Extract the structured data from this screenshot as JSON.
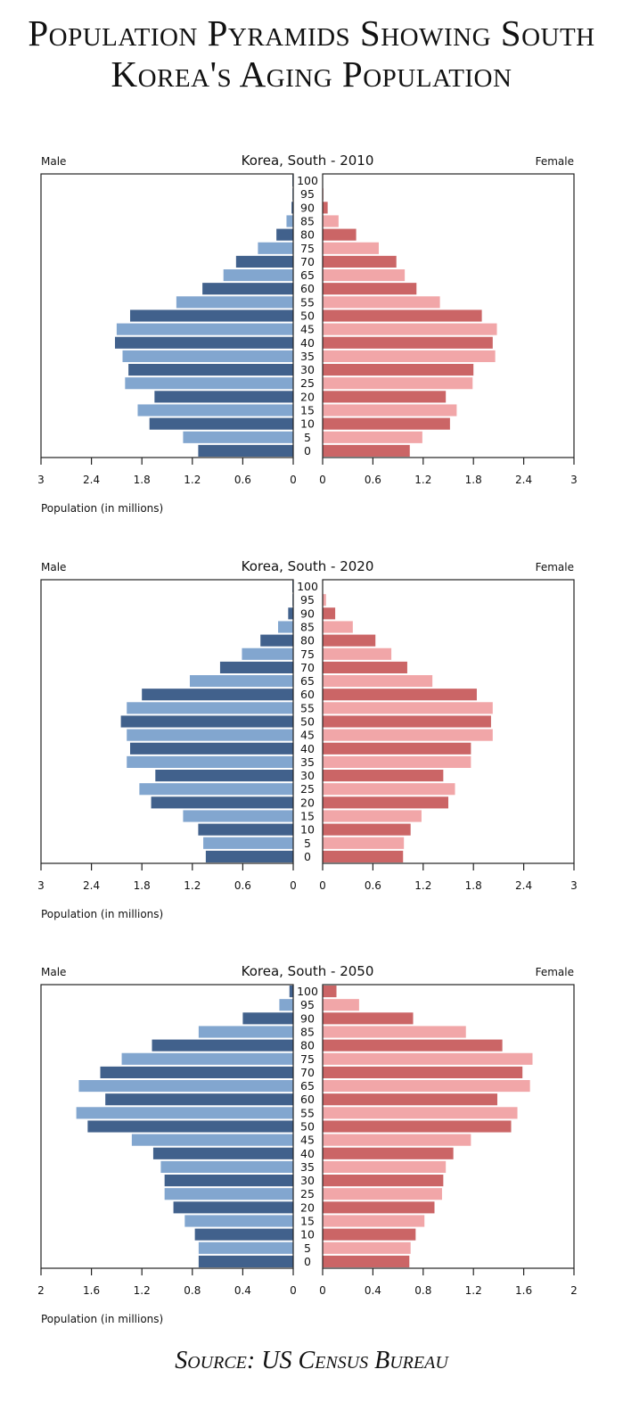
{
  "title": "Population Pyramids Showing South Korea's Aging Population",
  "source": "Source: US Census Bureau",
  "colors": {
    "male_dark": "#41618c",
    "male_light": "#82a6cf",
    "female_dark": "#cb6566",
    "female_light": "#f1a6a8",
    "axis": "#222222"
  },
  "chart_data": [
    {
      "type": "bar",
      "title": "Korea, South - 2010",
      "left_label": "Male",
      "right_label": "Female",
      "xlabel": "Population (in millions)",
      "xlim": [
        0,
        3
      ],
      "ticks": [
        "3",
        "2.4",
        "1.8",
        "1.2",
        "0.6",
        "0"
      ],
      "ticks_right": [
        "0",
        "0.6",
        "1.2",
        "1.8",
        "2.4",
        "3"
      ],
      "categories": [
        "100",
        "95",
        "90",
        "85",
        "80",
        "75",
        "70",
        "65",
        "60",
        "55",
        "50",
        "45",
        "40",
        "35",
        "30",
        "25",
        "20",
        "15",
        "10",
        "5",
        "0"
      ],
      "series": [
        {
          "name": "Male",
          "values": [
            0.01,
            0.01,
            0.02,
            0.08,
            0.2,
            0.42,
            0.68,
            0.83,
            1.08,
            1.39,
            1.94,
            2.1,
            2.12,
            2.03,
            1.96,
            2.0,
            1.65,
            1.85,
            1.71,
            1.31,
            1.13
          ]
        },
        {
          "name": "Female",
          "values": [
            0,
            0.01,
            0.06,
            0.19,
            0.4,
            0.67,
            0.88,
            0.98,
            1.12,
            1.4,
            1.9,
            2.08,
            2.03,
            2.06,
            1.8,
            1.79,
            1.47,
            1.6,
            1.52,
            1.19,
            1.04
          ]
        }
      ]
    },
    {
      "type": "bar",
      "title": "Korea, South - 2020",
      "left_label": "Male",
      "right_label": "Female",
      "xlabel": "Population (in millions)",
      "xlim": [
        0,
        3
      ],
      "ticks": [
        "3",
        "2.4",
        "1.8",
        "1.2",
        "0.6",
        "0"
      ],
      "ticks_right": [
        "0",
        "0.6",
        "1.2",
        "1.8",
        "2.4",
        "3"
      ],
      "categories": [
        "100",
        "95",
        "90",
        "85",
        "80",
        "75",
        "70",
        "65",
        "60",
        "55",
        "50",
        "45",
        "40",
        "35",
        "30",
        "25",
        "20",
        "15",
        "10",
        "5",
        "0"
      ],
      "series": [
        {
          "name": "Male",
          "values": [
            0.01,
            0.01,
            0.06,
            0.18,
            0.39,
            0.61,
            0.87,
            1.23,
            1.8,
            1.98,
            2.05,
            1.98,
            1.94,
            1.98,
            1.64,
            1.83,
            1.69,
            1.31,
            1.13,
            1.07,
            1.04
          ]
        },
        {
          "name": "Female",
          "values": [
            0,
            0.04,
            0.15,
            0.36,
            0.63,
            0.82,
            1.01,
            1.31,
            1.84,
            2.03,
            2.01,
            2.03,
            1.77,
            1.77,
            1.44,
            1.58,
            1.5,
            1.18,
            1.05,
            0.97,
            0.96
          ]
        }
      ]
    },
    {
      "type": "bar",
      "title": "Korea, South - 2050",
      "left_label": "Male",
      "right_label": "Female",
      "xlabel": "Population (in millions)",
      "xlim": [
        0,
        2
      ],
      "ticks": [
        "2",
        "1.6",
        "1.2",
        "0.8",
        "0.4",
        "0"
      ],
      "ticks_right": [
        "0",
        "0.4",
        "0.8",
        "1.2",
        "1.6",
        "2"
      ],
      "categories": [
        "100",
        "95",
        "90",
        "85",
        "80",
        "75",
        "70",
        "65",
        "60",
        "55",
        "50",
        "45",
        "40",
        "35",
        "30",
        "25",
        "20",
        "15",
        "10",
        "5",
        "0"
      ],
      "series": [
        {
          "name": "Male",
          "values": [
            0.03,
            0.11,
            0.4,
            0.75,
            1.12,
            1.36,
            1.53,
            1.7,
            1.49,
            1.72,
            1.63,
            1.28,
            1.11,
            1.05,
            1.02,
            1.02,
            0.95,
            0.86,
            0.78,
            0.75,
            0.75
          ]
        },
        {
          "name": "Female",
          "values": [
            0.11,
            0.29,
            0.72,
            1.14,
            1.43,
            1.67,
            1.59,
            1.65,
            1.39,
            1.55,
            1.5,
            1.18,
            1.04,
            0.98,
            0.96,
            0.95,
            0.89,
            0.81,
            0.74,
            0.7,
            0.69
          ]
        }
      ]
    }
  ]
}
